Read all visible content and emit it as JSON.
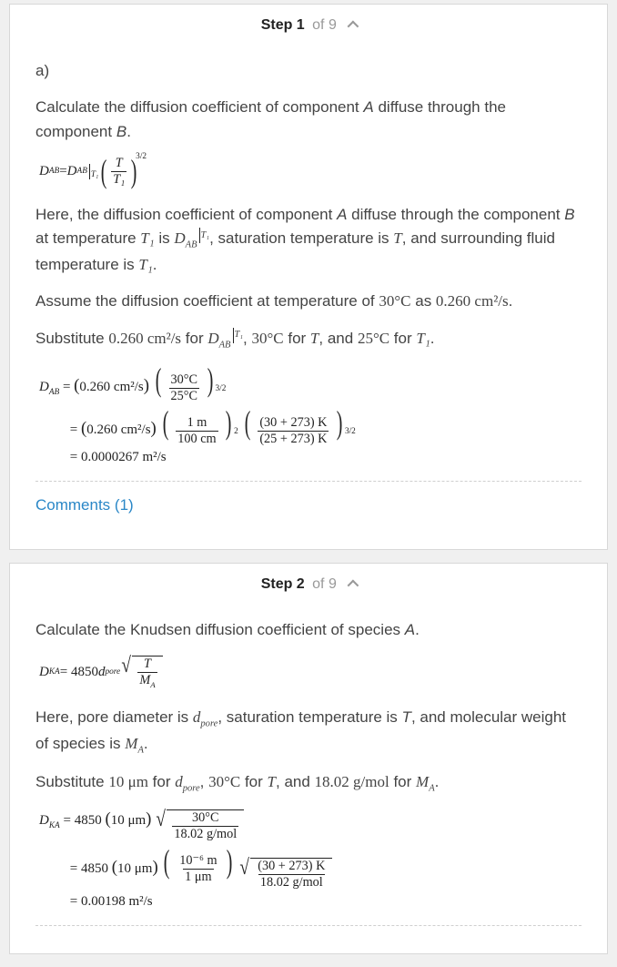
{
  "step1": {
    "label_bold": "Step 1",
    "label_of": "of 9",
    "part": "a)",
    "p1_a": "Calculate the diffusion coefficient of component ",
    "p1_A": "A",
    "p1_b": " diffuse through the component ",
    "p1_B": "B",
    "p1_c": ".",
    "eq1_lhs": "D",
    "eq1_lhs_sub": "AB",
    "eq1_eq": " = ",
    "eq1_rhs": "D",
    "eq1_rhs_sub": "AB",
    "eq1_bar_sub": "T₁",
    "eq1_num": "T",
    "eq1_den": "T₁",
    "eq1_exp": "3/2",
    "p2_a": "Here, the diffusion coefficient of component ",
    "p2_A": "A",
    "p2_b": " diffuse through the component ",
    "p2_B": "B",
    "p2_c": " at temperature ",
    "p2_T1": "T₁",
    "p2_d": " is ",
    "p2_DAB": "D",
    "p2_DAB_sub": "AB",
    "p2_DAB_bar": "T₁",
    "p2_e": ", saturation temperature is ",
    "p2_T": "T",
    "p2_f": ", and surrounding fluid temperature is ",
    "p2_T1b": "T₁",
    "p2_g": ".",
    "p3_a": "Assume the diffusion coefficient at temperature of ",
    "p3_30C": "30°C",
    "p3_b": " as ",
    "p3_val": "0.260 cm²/s",
    "p3_c": ".",
    "p4_a": "Substitute ",
    "p4_v1": "0.260 cm²/s",
    "p4_b": " for ",
    "p4_DAB": "D",
    "p4_DAB_sub": "AB",
    "p4_DAB_bar": "T₁",
    "p4_c": ", ",
    "p4_v2": "30°C",
    "p4_d": " for ",
    "p4_T": "T",
    "p4_e": ", and ",
    "p4_v3": "25°C",
    "p4_f": " for ",
    "p4_T1": "T₁",
    "p4_g": ".",
    "eq2_l1_lhs": "D",
    "eq2_l1_lhs_sub": "AB",
    "eq2_l1_eq": " = ",
    "eq2_l1_p1": "0.260 cm²/s",
    "eq2_l1_num": "30°C",
    "eq2_l1_den": "25°C",
    "eq2_l1_exp": "3/2",
    "eq2_l2_eq": "= ",
    "eq2_l2_p1": "0.260 cm²/s",
    "eq2_l2_f1_num": "1 m",
    "eq2_l2_f1_den": "100 cm",
    "eq2_l2_f1_exp": "2",
    "eq2_l2_f2_num": "(30 + 273) K",
    "eq2_l2_f2_den": "(25 + 273) K",
    "eq2_l2_f2_exp": "3/2",
    "eq2_l3": "= 0.0000267 m²/s",
    "comments": "Comments (1)"
  },
  "step2": {
    "label_bold": "Step 2",
    "label_of": "of 9",
    "p1_a": "Calculate the Knudsen diffusion coefficient of species ",
    "p1_A": "A",
    "p1_b": ".",
    "eq1_lhs": "D",
    "eq1_lhs_sub": "KA",
    "eq1_eq": " = 4850",
    "eq1_d": "d",
    "eq1_d_sub": "pore",
    "eq1_sqrt_num": "T",
    "eq1_sqrt_den_M": "M",
    "eq1_sqrt_den_A": "A",
    "p2_a": "Here, pore diameter is ",
    "p2_d": "d",
    "p2_d_sub": "pore",
    "p2_b": ", saturation temperature is ",
    "p2_T": "T",
    "p2_c": ", and molecular weight of species is ",
    "p2_M": "M",
    "p2_M_sub": "A",
    "p2_d2": ".",
    "p3_a": "Substitute ",
    "p3_v1": "10 μm",
    "p3_b": " for ",
    "p3_d": "d",
    "p3_d_sub": "pore",
    "p3_c": ", ",
    "p3_v2": "30°C",
    "p3_d2": " for ",
    "p3_T": "T",
    "p3_e": ", and ",
    "p3_v3": "18.02 g/mol",
    "p3_f": " for ",
    "p3_M": "M",
    "p3_M_sub": "A",
    "p3_g": ".",
    "eq2_l1_lhs": "D",
    "eq2_l1_lhs_sub": "KA",
    "eq2_l1_eq": " = 4850",
    "eq2_l1_p1": "10 μm",
    "eq2_l1_num": "30°C",
    "eq2_l1_den": "18.02 g/mol",
    "eq2_l2_eq": "= 4850",
    "eq2_l2_p1": "10 μm",
    "eq2_l2_f1_num": "10⁻⁶ m",
    "eq2_l2_f1_den": "1 μm",
    "eq2_l2_f2_num": "(30 + 273) K",
    "eq2_l2_f2_den": "18.02 g/mol",
    "eq2_l3": "= 0.00198 m²/s"
  }
}
